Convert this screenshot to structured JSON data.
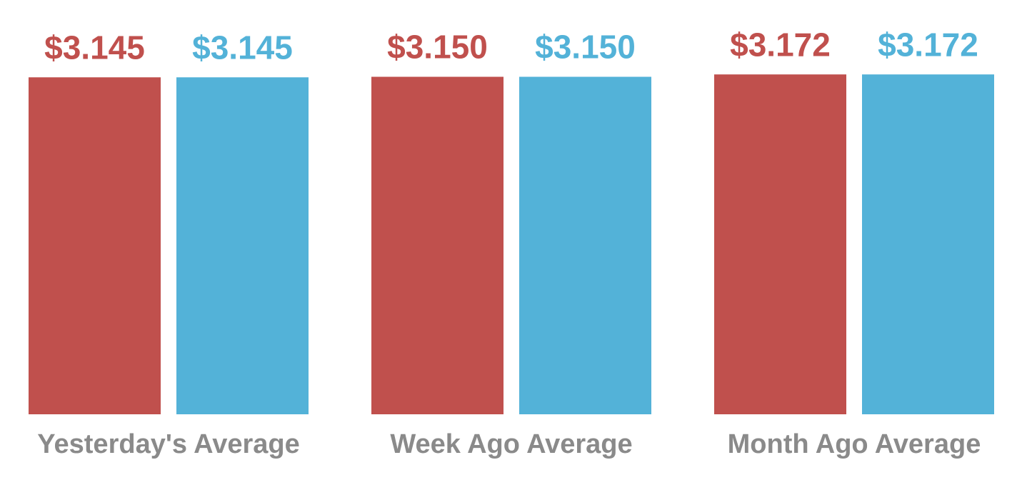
{
  "chart_data": {
    "type": "bar",
    "categories": [
      "Yesterday's Average",
      "Week Ago Average",
      "Month Ago Average"
    ],
    "series": [
      {
        "color": "#c0504d",
        "values": [
          3.145,
          3.15,
          3.172
        ],
        "value_labels": [
          "$3.145",
          "$3.150",
          "$3.172"
        ]
      },
      {
        "color": "#53b2d8",
        "values": [
          3.145,
          3.15,
          3.172
        ],
        "value_labels": [
          "$3.145",
          "$3.150",
          "$3.172"
        ]
      }
    ],
    "ylim": [
      0,
      3.5
    ]
  }
}
